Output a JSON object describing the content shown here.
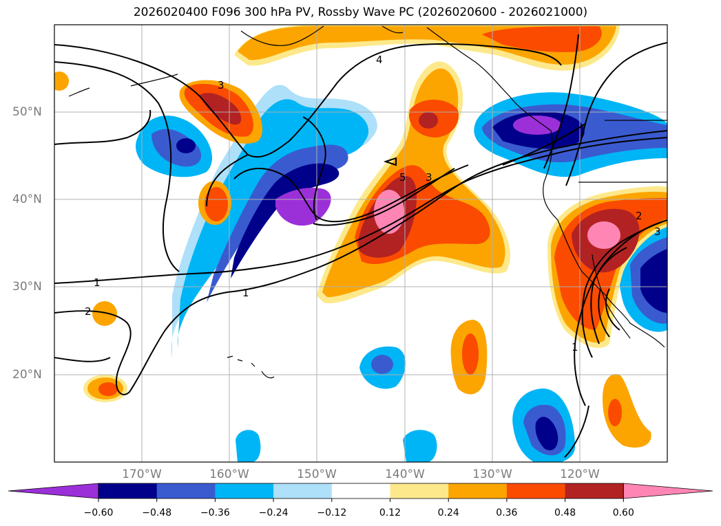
{
  "title": "2026020400 F096 300 hPa PV, Rossby Wave PC (2026020600 - 2026021000)",
  "lat_labels": [
    "50°N",
    "40°N",
    "30°N",
    "20°N"
  ],
  "lon_labels": [
    "170°W",
    "160°W",
    "150°W",
    "140°W",
    "130°W",
    "120°W"
  ],
  "contour_labels": [
    "4",
    "3",
    "5",
    "3",
    "1",
    "1",
    "2",
    "2",
    "3",
    "1"
  ],
  "colorbar": {
    "ticks": [
      "−0.60",
      "−0.48",
      "−0.36",
      "−0.24",
      "−0.12",
      "0.12",
      "0.24",
      "0.36",
      "0.48",
      "0.60"
    ],
    "colors": [
      "#9b30d9",
      "#00008b",
      "#3a5bd0",
      "#00b5f5",
      "#aee0fa",
      "#ffffff",
      "#fde98b",
      "#fca500",
      "#fa4b00",
      "#b22222",
      "#ff86b4"
    ]
  }
}
